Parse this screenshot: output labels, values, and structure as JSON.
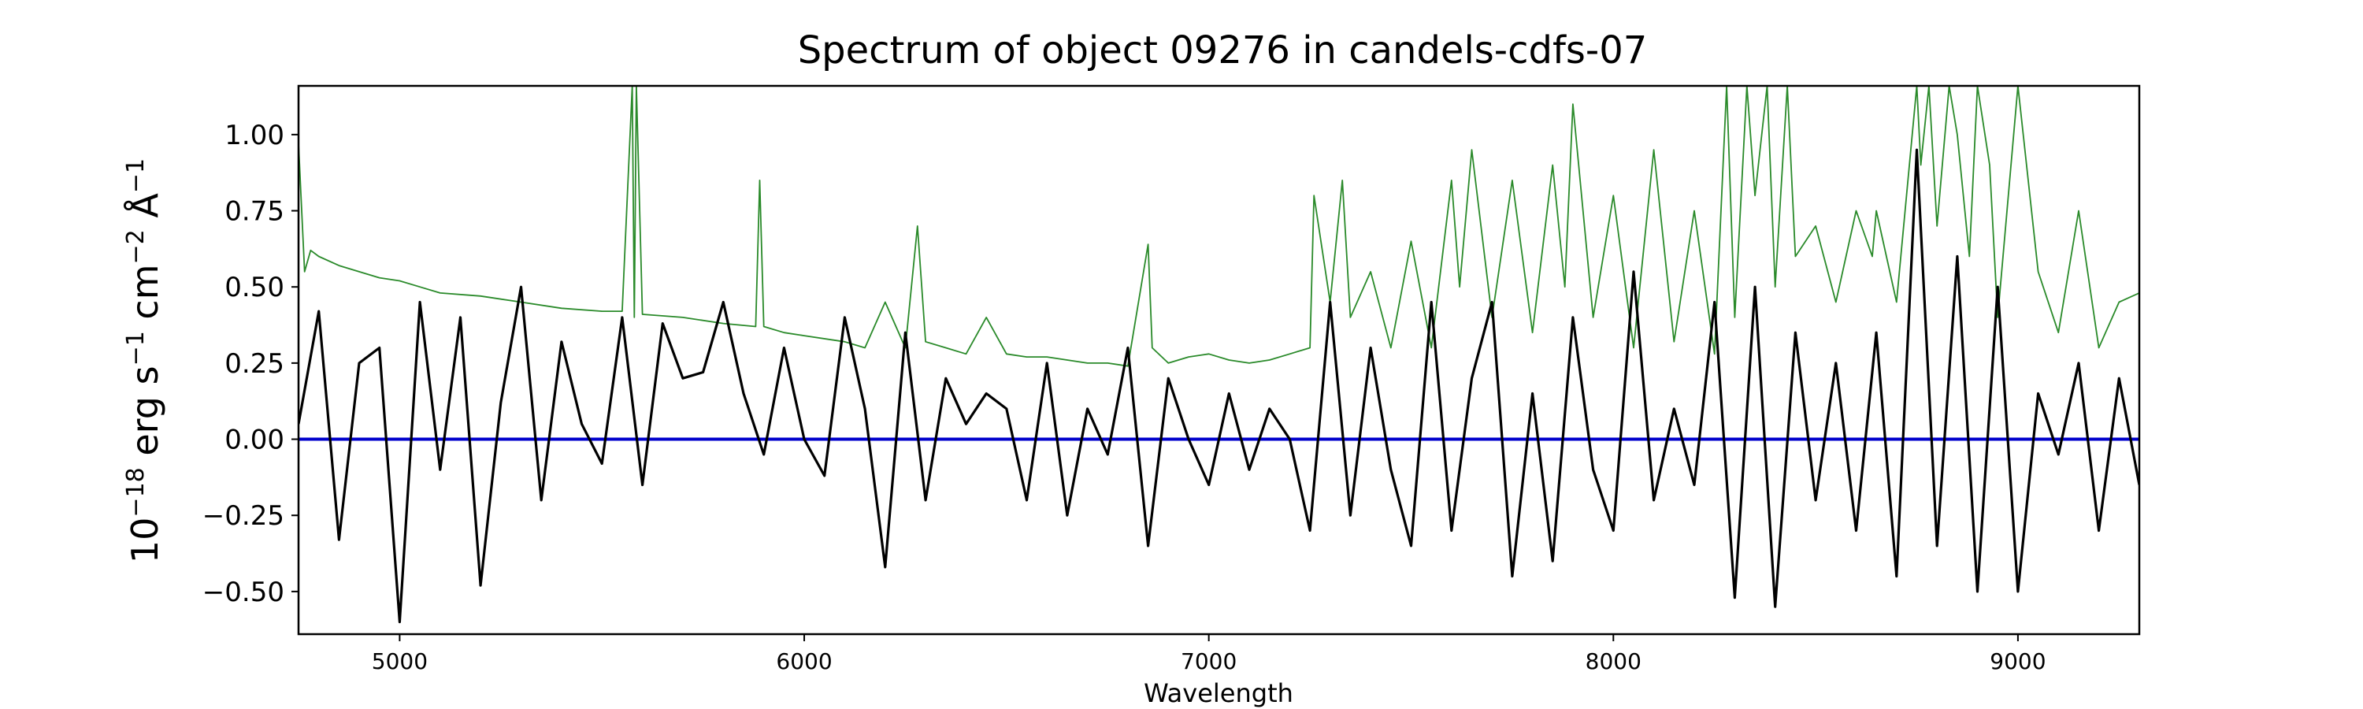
{
  "chart_data": {
    "type": "line",
    "title": "Spectrum of object 09276 in candels-cdfs-07",
    "xlabel": "Wavelength",
    "ylabel_parts": {
      "base": "10",
      "exp1": "−18",
      "erg": " erg s",
      "exp2": "−1",
      "cm": " cm",
      "exp3": "−2",
      "ang": " Å",
      "exp4": "−1"
    },
    "xlim": [
      4750,
      9300
    ],
    "ylim": [
      -0.64,
      1.16
    ],
    "x_ticks": [
      5000,
      6000,
      7000,
      8000,
      9000
    ],
    "x_tick_labels": [
      "5000",
      "6000",
      "7000",
      "8000",
      "9000"
    ],
    "y_ticks": [
      -0.5,
      -0.25,
      0.0,
      0.25,
      0.5,
      0.75,
      1.0
    ],
    "y_tick_labels": [
      "−0.50",
      "−0.25",
      "0.00",
      "0.25",
      "0.50",
      "0.75",
      "1.00"
    ],
    "grid": false,
    "colors": {
      "flux": "#000000",
      "error": "#2a8a2a",
      "zero": "#0000cc"
    },
    "series": [
      {
        "role": "flux",
        "x": [
          4750,
          4800,
          4850,
          4900,
          4950,
          5000,
          5050,
          5100,
          5150,
          5200,
          5250,
          5300,
          5350,
          5400,
          5450,
          5500,
          5550,
          5600,
          5650,
          5700,
          5750,
          5800,
          5850,
          5900,
          5950,
          6000,
          6050,
          6100,
          6150,
          6200,
          6250,
          6300,
          6350,
          6400,
          6450,
          6500,
          6550,
          6600,
          6650,
          6700,
          6750,
          6800,
          6850,
          6900,
          6950,
          7000,
          7050,
          7100,
          7150,
          7200,
          7250,
          7300,
          7350,
          7400,
          7450,
          7500,
          7550,
          7600,
          7650,
          7700,
          7750,
          7800,
          7850,
          7900,
          7950,
          8000,
          8050,
          8100,
          8150,
          8200,
          8250,
          8300,
          8350,
          8400,
          8450,
          8500,
          8550,
          8600,
          8650,
          8700,
          8750,
          8800,
          8850,
          8900,
          8950,
          9000,
          9050,
          9100,
          9150,
          9200,
          9250,
          9300
        ],
        "y": [
          0.05,
          0.42,
          -0.33,
          0.25,
          0.3,
          -0.6,
          0.45,
          -0.1,
          0.4,
          -0.48,
          0.12,
          0.5,
          -0.2,
          0.32,
          0.05,
          -0.08,
          0.4,
          -0.15,
          0.38,
          0.2,
          0.22,
          0.45,
          0.15,
          -0.05,
          0.3,
          0.0,
          -0.12,
          0.4,
          0.1,
          -0.42,
          0.35,
          -0.2,
          0.2,
          0.05,
          0.15,
          0.1,
          -0.2,
          0.25,
          -0.25,
          0.1,
          -0.05,
          0.3,
          -0.35,
          0.2,
          0.0,
          -0.15,
          0.15,
          -0.1,
          0.1,
          0.0,
          -0.3,
          0.45,
          -0.25,
          0.3,
          -0.1,
          -0.35,
          0.45,
          -0.3,
          0.2,
          0.45,
          -0.45,
          0.15,
          -0.4,
          0.4,
          -0.1,
          -0.3,
          0.55,
          -0.2,
          0.1,
          -0.15,
          0.45,
          -0.52,
          0.5,
          -0.55,
          0.35,
          -0.2,
          0.25,
          -0.3,
          0.35,
          -0.45,
          0.95,
          -0.35,
          0.6,
          -0.5,
          0.5,
          -0.5,
          0.15,
          -0.05,
          0.25,
          -0.3,
          0.2,
          -0.15
        ]
      },
      {
        "role": "error",
        "x": [
          4750,
          4765,
          4780,
          4800,
          4850,
          4900,
          4950,
          5000,
          5050,
          5100,
          5200,
          5300,
          5400,
          5500,
          5550,
          5575,
          5580,
          5585,
          5600,
          5700,
          5800,
          5880,
          5890,
          5900,
          5950,
          6000,
          6100,
          6150,
          6200,
          6250,
          6280,
          6300,
          6350,
          6400,
          6450,
          6500,
          6550,
          6600,
          6650,
          6700,
          6750,
          6800,
          6850,
          6860,
          6900,
          6950,
          7000,
          7050,
          7100,
          7150,
          7200,
          7250,
          7260,
          7300,
          7330,
          7350,
          7400,
          7450,
          7500,
          7550,
          7600,
          7620,
          7650,
          7700,
          7750,
          7800,
          7850,
          7880,
          7900,
          7950,
          8000,
          8050,
          8100,
          8150,
          8200,
          8250,
          8280,
          8300,
          8330,
          8350,
          8380,
          8400,
          8430,
          8450,
          8500,
          8550,
          8600,
          8640,
          8650,
          8700,
          8750,
          8760,
          8780,
          8800,
          8830,
          8850,
          8880,
          8900,
          8930,
          8950,
          9000,
          9050,
          9100,
          9150,
          9200,
          9250,
          9300
        ],
        "y": [
          0.97,
          0.55,
          0.62,
          0.6,
          0.57,
          0.55,
          0.53,
          0.52,
          0.5,
          0.48,
          0.47,
          0.45,
          0.43,
          0.42,
          0.42,
          1.16,
          0.4,
          1.16,
          0.41,
          0.4,
          0.38,
          0.37,
          0.85,
          0.37,
          0.35,
          0.34,
          0.32,
          0.3,
          0.45,
          0.3,
          0.7,
          0.32,
          0.3,
          0.28,
          0.4,
          0.28,
          0.27,
          0.27,
          0.26,
          0.25,
          0.25,
          0.24,
          0.64,
          0.3,
          0.25,
          0.27,
          0.28,
          0.26,
          0.25,
          0.26,
          0.28,
          0.3,
          0.8,
          0.45,
          0.85,
          0.4,
          0.55,
          0.3,
          0.65,
          0.3,
          0.85,
          0.5,
          0.95,
          0.4,
          0.85,
          0.35,
          0.9,
          0.5,
          1.1,
          0.4,
          0.8,
          0.3,
          0.95,
          0.32,
          0.75,
          0.28,
          1.16,
          0.4,
          1.16,
          0.8,
          1.16,
          0.5,
          1.16,
          0.6,
          0.7,
          0.45,
          0.75,
          0.6,
          0.75,
          0.45,
          1.16,
          0.9,
          1.16,
          0.7,
          1.16,
          1.0,
          0.6,
          1.16,
          0.9,
          0.4,
          1.16,
          0.55,
          0.35,
          0.75,
          0.3,
          0.45,
          0.48
        ]
      },
      {
        "role": "zero",
        "x": [
          4750,
          9300
        ],
        "y": [
          0,
          0
        ]
      }
    ]
  }
}
